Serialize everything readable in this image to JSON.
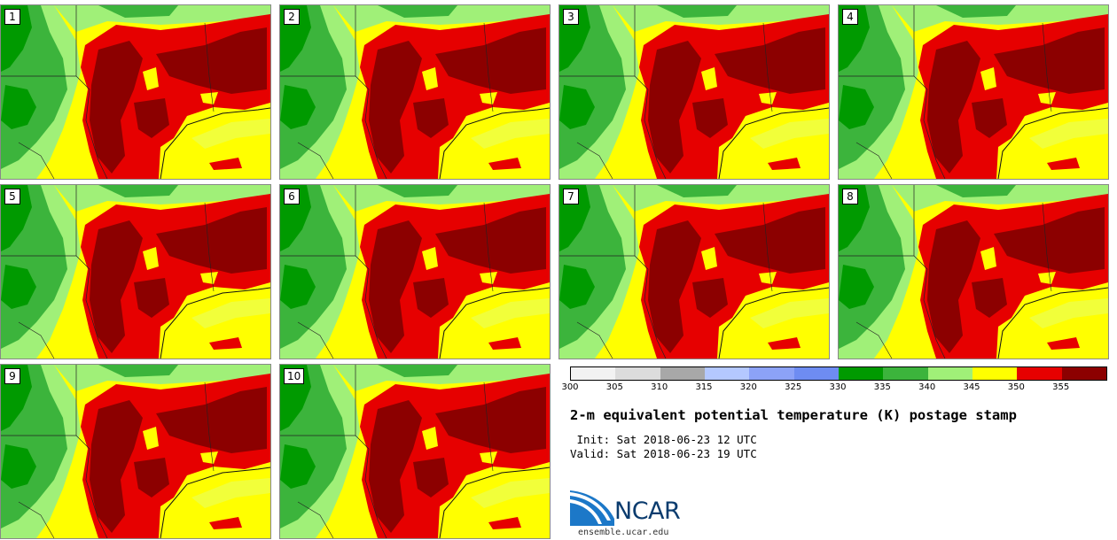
{
  "panels": [
    {
      "label": "1"
    },
    {
      "label": "2"
    },
    {
      "label": "3"
    },
    {
      "label": "4"
    },
    {
      "label": "5"
    },
    {
      "label": "6"
    },
    {
      "label": "7"
    },
    {
      "label": "8"
    },
    {
      "label": "9"
    },
    {
      "label": "10"
    }
  ],
  "colorbar": {
    "ticks": [
      "300",
      "305",
      "310",
      "315",
      "320",
      "325",
      "330",
      "335",
      "340",
      "345",
      "350",
      "355"
    ],
    "colors": [
      "#f2f2f2",
      "#dcdcdc",
      "#a8a8a8",
      "#b4c8ff",
      "#8ca2f7",
      "#6e8cf2",
      "#009a00",
      "#3cb43c",
      "#a0f078",
      "#ffff00",
      "#e60000",
      "#8c0000"
    ]
  },
  "title": "2-m equivalent potential temperature (K) postage stamp",
  "init": " Init: Sat 2018-06-23 12 UTC",
  "valid": "Valid: Sat 2018-06-23 19 UTC",
  "logo": {
    "text": "NCAR",
    "url": "ensemble.ucar.edu"
  }
}
